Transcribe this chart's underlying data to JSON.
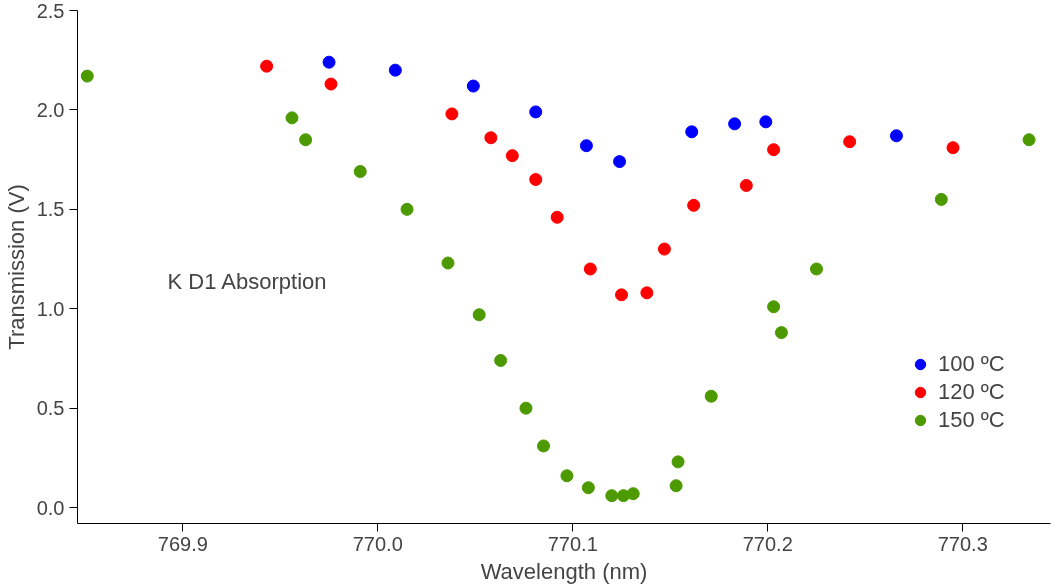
{
  "chart_data": {
    "type": "scatter",
    "xlabel": "Wavelength (nm)",
    "ylabel": "Transmission (V)",
    "annotations": [
      "K D1 Absorption"
    ],
    "xlim": [
      769.846,
      770.345
    ],
    "ylim": [
      -0.08,
      2.5
    ],
    "xticks": [
      769.9,
      {
        "value": 770,
        "label": "770.0"
      },
      770.1,
      770.2,
      770.3
    ],
    "yticks": [
      {
        "value": 0,
        "label": "0.0"
      },
      0.5,
      {
        "value": 1,
        "label": "1.0"
      },
      1.5,
      {
        "value": 2,
        "label": "2.0"
      },
      2.5
    ],
    "grid": false,
    "legend": "right",
    "marker": "circle",
    "series": [
      {
        "name": "100 ºC",
        "color": "#0000ff",
        "x": [
          769.975,
          770.009,
          770.049,
          770.081,
          770.107,
          770.124,
          770.161,
          770.183,
          770.199,
          770.266
        ],
        "values": [
          2.24,
          2.2,
          2.12,
          1.99,
          1.82,
          1.74,
          1.89,
          1.93,
          1.94,
          1.87
        ]
      },
      {
        "name": "120 ºC",
        "color": "#ff0000",
        "x": [
          769.943,
          769.976,
          770.038,
          770.058,
          770.069,
          770.081,
          770.092,
          770.109,
          770.125,
          770.138,
          770.147,
          770.162,
          770.189,
          770.203,
          770.242,
          770.295
        ],
        "values": [
          2.22,
          2.13,
          1.98,
          1.86,
          1.77,
          1.65,
          1.46,
          1.2,
          1.07,
          1.08,
          1.3,
          1.52,
          1.62,
          1.8,
          1.84,
          1.81
        ]
      },
      {
        "name": "150 ºC",
        "color": "#4c9a00",
        "x": [
          769.851,
          769.956,
          769.963,
          769.991,
          770.015,
          770.036,
          770.052,
          770.063,
          770.076,
          770.085,
          770.097,
          770.108,
          770.12,
          770.126,
          770.131,
          770.153,
          770.154,
          770.171,
          770.207,
          770.203,
          770.225,
          770.289,
          770.334
        ],
        "values": [
          2.17,
          1.96,
          1.85,
          1.69,
          1.5,
          1.23,
          0.97,
          0.74,
          0.5,
          0.31,
          0.16,
          0.1,
          0.06,
          0.06,
          0.07,
          0.11,
          0.23,
          0.56,
          0.88,
          1.01,
          1.2,
          1.55,
          1.85
        ]
      }
    ]
  }
}
